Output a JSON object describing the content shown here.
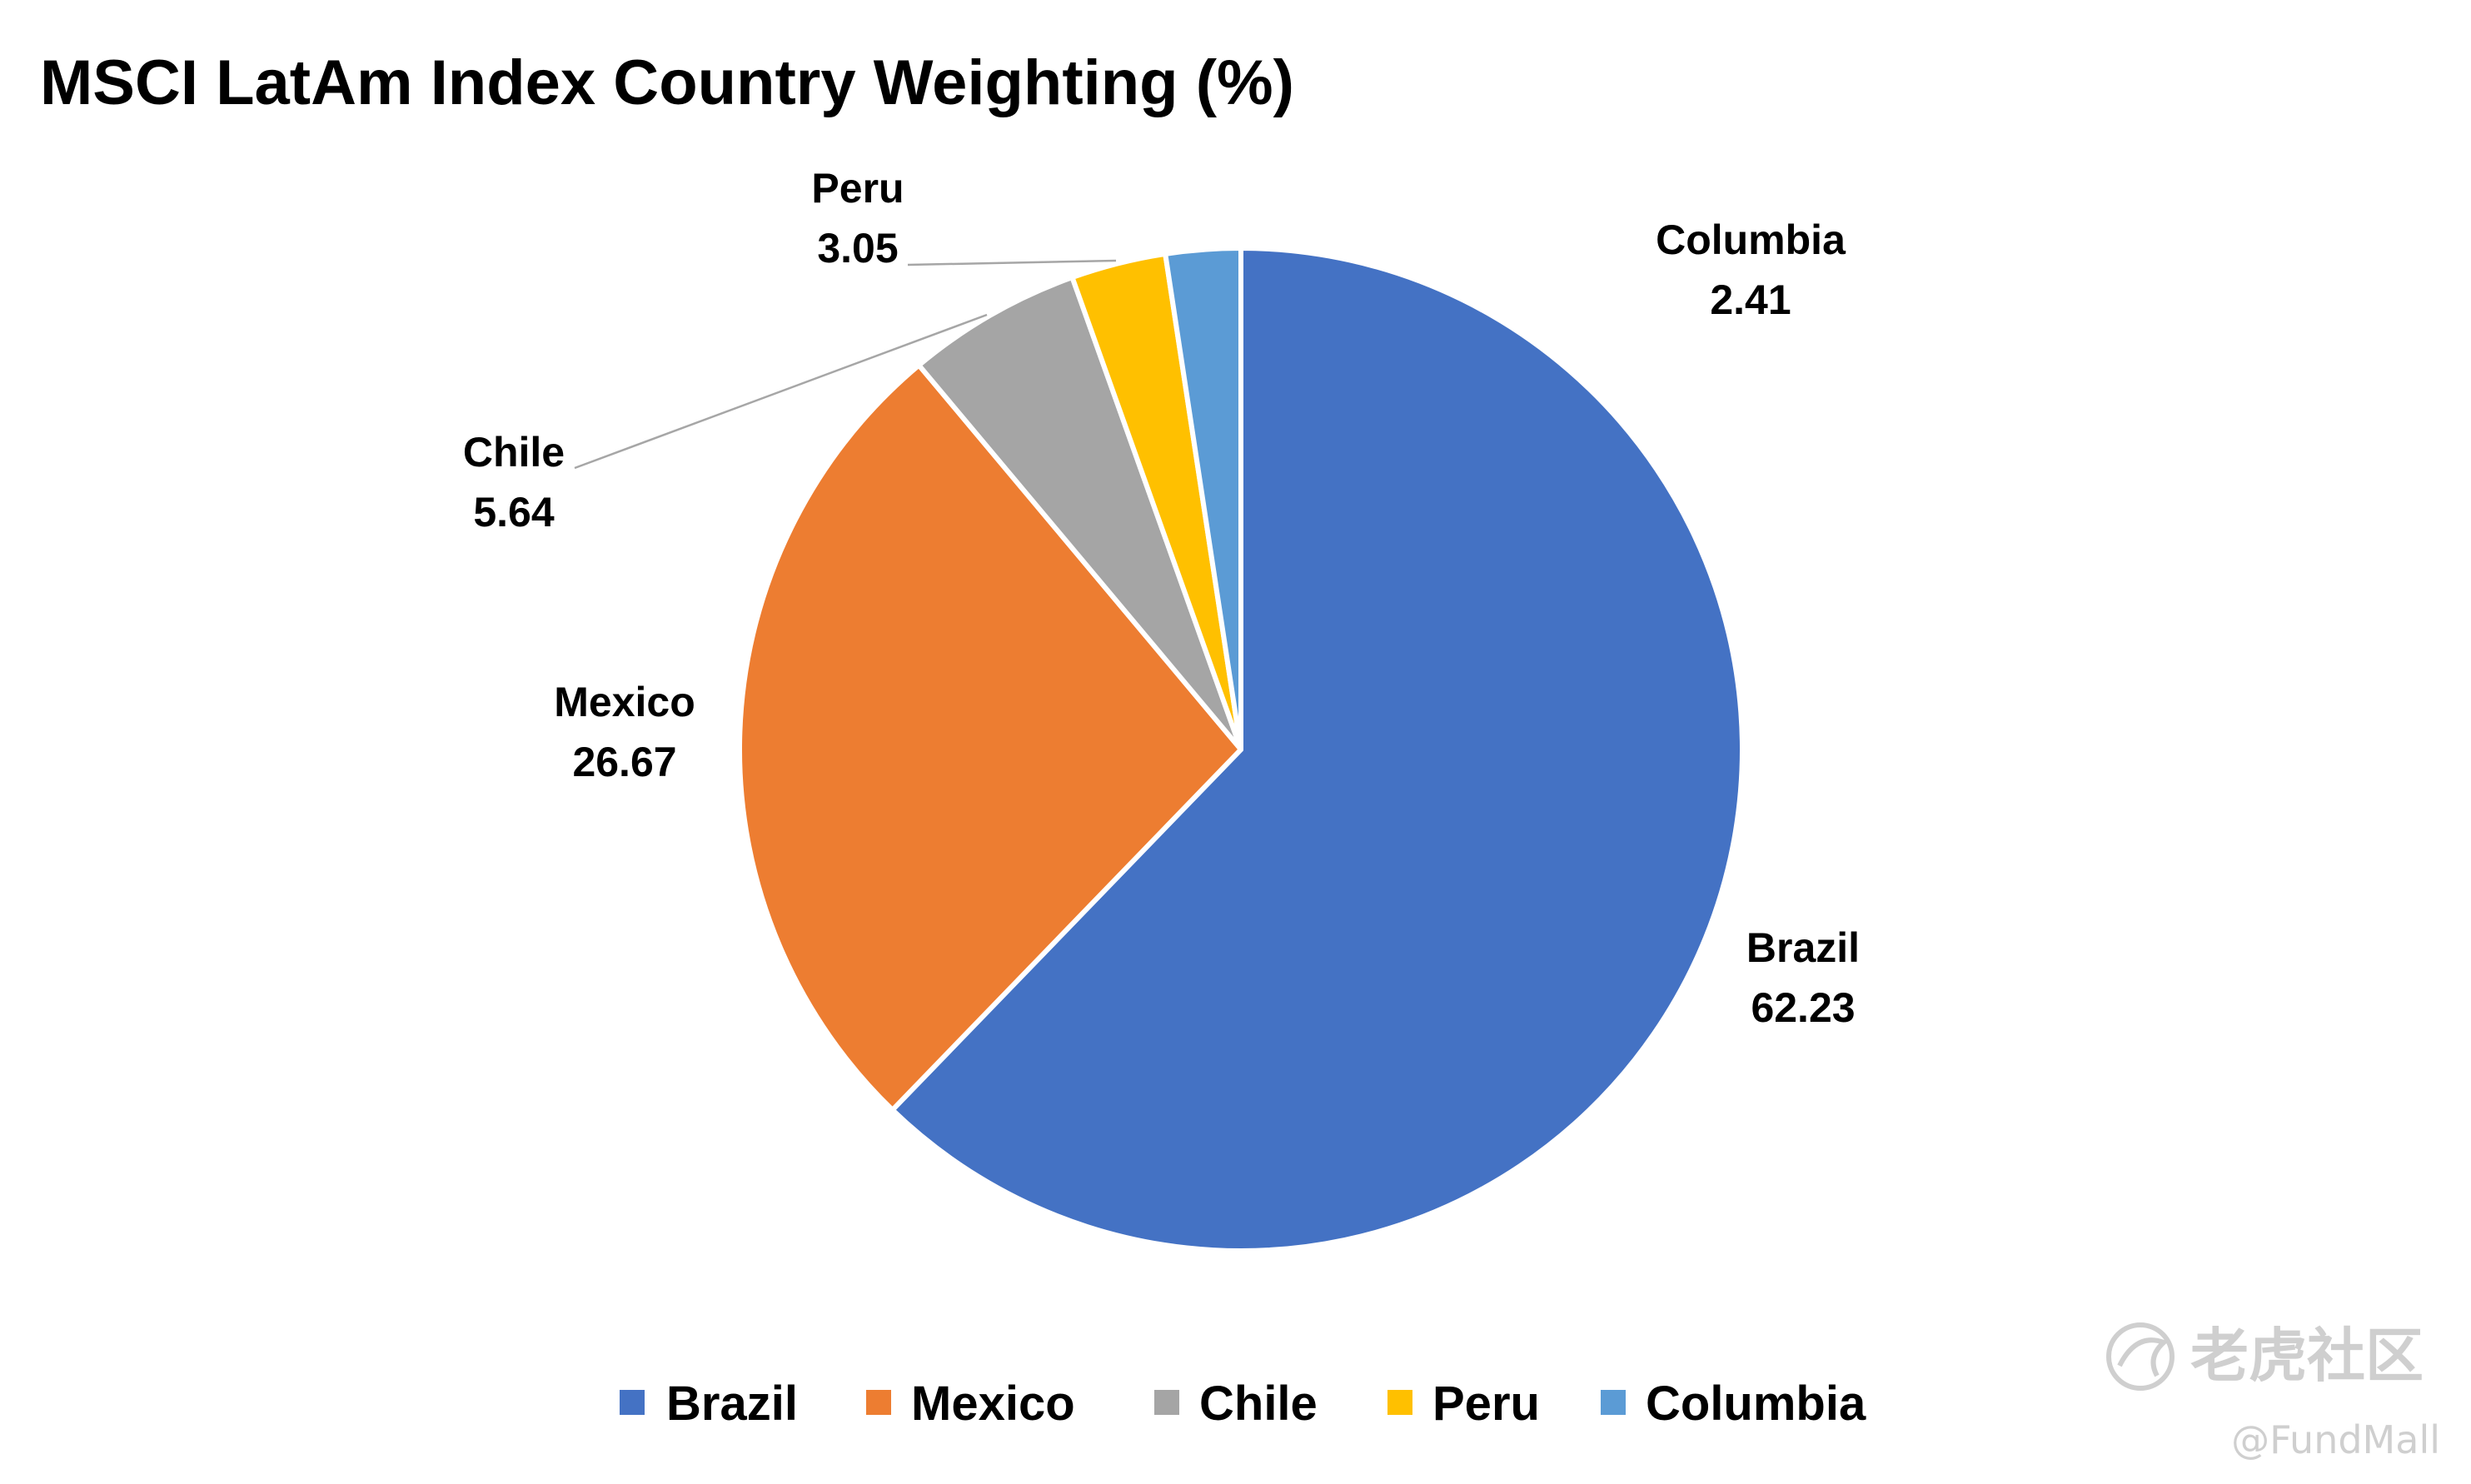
{
  "chart_data": {
    "type": "pie",
    "title": "MSCI LatAm Index Country Weighting (%)",
    "slices": [
      {
        "label": "Brazil",
        "value": 62.23,
        "display": "62.23",
        "color": "#4472C4"
      },
      {
        "label": "Mexico",
        "value": 26.67,
        "display": "26.67",
        "color": "#ED7D31"
      },
      {
        "label": "Chile",
        "value": 5.64,
        "display": "5.64",
        "color": "#A5A5A5"
      },
      {
        "label": "Peru",
        "value": 3.05,
        "display": "3.05",
        "color": "#FFC000"
      },
      {
        "label": "Columbia",
        "value": 2.41,
        "display": "2.41",
        "color": "#5B9BD5"
      }
    ],
    "start_angle": "12 o'clock",
    "direction": "clockwise",
    "legend_position": "bottom"
  },
  "watermark": {
    "icon": "tiger-community-logo-icon",
    "brand": "老虎社区",
    "handle": "@FundMall"
  }
}
